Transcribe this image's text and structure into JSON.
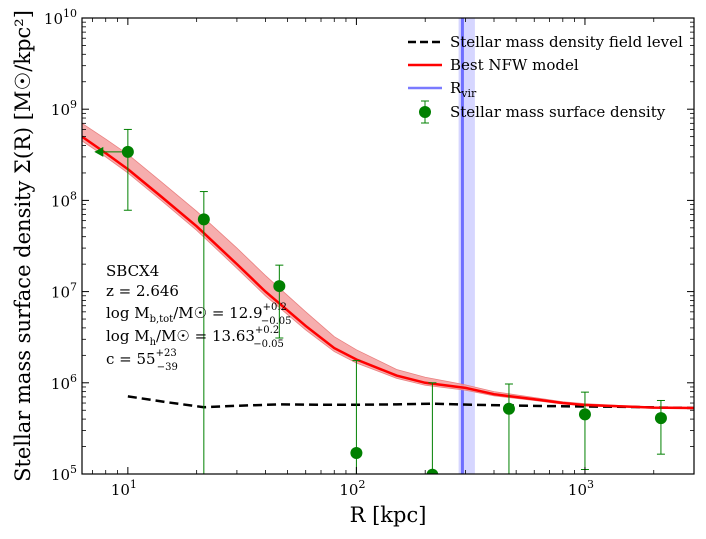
{
  "chart_data": {
    "type": "scatter",
    "xscale": "log",
    "yscale": "log",
    "xlim": [
      6.3,
      3000
    ],
    "ylim": [
      100000,
      10000000000
    ],
    "xlabel": "R [kpc]",
    "ylabel": "Stellar mass surface density Σ(R) [M☉/kpc²]",
    "x_ticks": [
      {
        "value": 10,
        "base": "10",
        "exp": "1"
      },
      {
        "value": 100,
        "base": "10",
        "exp": "2"
      },
      {
        "value": 1000,
        "base": "10",
        "exp": "3"
      }
    ],
    "y_ticks": [
      {
        "value": 100000,
        "base": "10",
        "exp": "5"
      },
      {
        "value": 1000000,
        "base": "10",
        "exp": "6"
      },
      {
        "value": 10000000,
        "base": "10",
        "exp": "7"
      },
      {
        "value": 100000000,
        "base": "10",
        "exp": "8"
      },
      {
        "value": 1000000000,
        "base": "10",
        "exp": "9"
      },
      {
        "value": 10000000000,
        "base": "10",
        "exp": "10"
      }
    ],
    "legend": {
      "position": "upper-right",
      "entries": [
        {
          "label": "Stellar mass density field level",
          "style": "dashed",
          "color": "#000000"
        },
        {
          "label": "Best NFW model",
          "style": "line",
          "color": "#ff0000"
        },
        {
          "label_main": "R",
          "label_sub": "vir",
          "style": "line",
          "color": "#7a7aff"
        },
        {
          "label": "Stellar mass surface density",
          "style": "errorbar-marker",
          "color": "#008000"
        }
      ]
    },
    "annotation": {
      "name": "SBCX4",
      "z_label": "z = 2.646",
      "mb": {
        "prefix": "log M",
        "sub": "b,tot",
        "mid": "/M☉ = 12.9",
        "sup": "+0.2",
        "low": "−0.05"
      },
      "mh": {
        "prefix": "log M",
        "sub": "h",
        "mid": "/M☉ = 13.63",
        "sup": "+0.2",
        "low": "−0.05"
      },
      "c": {
        "prefix": "c = 55",
        "sup": "+23",
        "low": "−39"
      }
    },
    "series": [
      {
        "name": "Stellar mass density field level",
        "style": "dashed",
        "color": "#000000",
        "x": [
          10,
          15,
          21.5,
          30,
          46,
          70,
          100,
          150,
          215,
          320,
          460,
          700,
          1000,
          1500,
          2150,
          3000
        ],
        "y": [
          710000,
          610000,
          540000,
          560000,
          580000,
          575000,
          575000,
          580000,
          590000,
          575000,
          565000,
          555000,
          550000,
          545000,
          535000,
          530000
        ]
      },
      {
        "name": "Best NFW model",
        "style": "line",
        "color": "#ff0000",
        "band_color": "#f4a0a0",
        "x": [
          6.3,
          8,
          10,
          14,
          20,
          30,
          40,
          60,
          80,
          100,
          150,
          200,
          300,
          400,
          600,
          800,
          1000,
          1500,
          2000,
          3000
        ],
        "y": [
          500000000,
          330000000,
          220000000,
          110000000,
          52000000,
          20000000,
          10000000,
          4200000,
          2400000,
          1800000,
          1200000,
          1000000,
          880000,
          750000,
          660000,
          600000,
          570000,
          550000,
          535000,
          530000
        ],
        "y_upper": [
          700000000,
          470000000,
          320000000,
          160000000,
          76000000,
          30000000,
          15000000,
          6000000,
          3200000,
          2300000,
          1400000,
          1150000,
          950000,
          800000,
          690000,
          620000,
          590000,
          560000,
          545000,
          535000
        ],
        "y_lower": [
          450000000,
          300000000,
          200000000,
          100000000,
          47000000,
          18000000,
          9000000,
          3800000,
          2200000,
          1650000,
          1120000,
          940000,
          830000,
          720000,
          640000,
          585000,
          560000,
          540000,
          528000,
          525000
        ]
      },
      {
        "name": "R_vir",
        "style": "vline",
        "color": "#6f6fff",
        "x_value": 291,
        "band": [
          280,
          330
        ]
      },
      {
        "name": "Stellar mass surface density",
        "style": "errorbar",
        "color": "#008000",
        "points": [
          {
            "x": 10,
            "y": 340000000,
            "ylo": 78000000,
            "yhi": 600000000,
            "xlo": 7.5
          },
          {
            "x": 21.5,
            "y": 62000000,
            "ylo": 100000,
            "yhi": 125000000
          },
          {
            "x": 46,
            "y": 11500000,
            "ylo": 3100000,
            "yhi": 19500000
          },
          {
            "x": 100,
            "y": 170000,
            "ylo": 100000,
            "yhi": 1750000
          },
          {
            "x": 215,
            "y": 98000,
            "ylo": 100000,
            "yhi": 1000000
          },
          {
            "x": 465,
            "y": 520000,
            "ylo": 100000,
            "yhi": 970000
          },
          {
            "x": 1000,
            "y": 450000,
            "ylo": 112000,
            "yhi": 790000
          },
          {
            "x": 2150,
            "y": 410000,
            "ylo": 165000,
            "yhi": 640000
          }
        ]
      }
    ]
  }
}
